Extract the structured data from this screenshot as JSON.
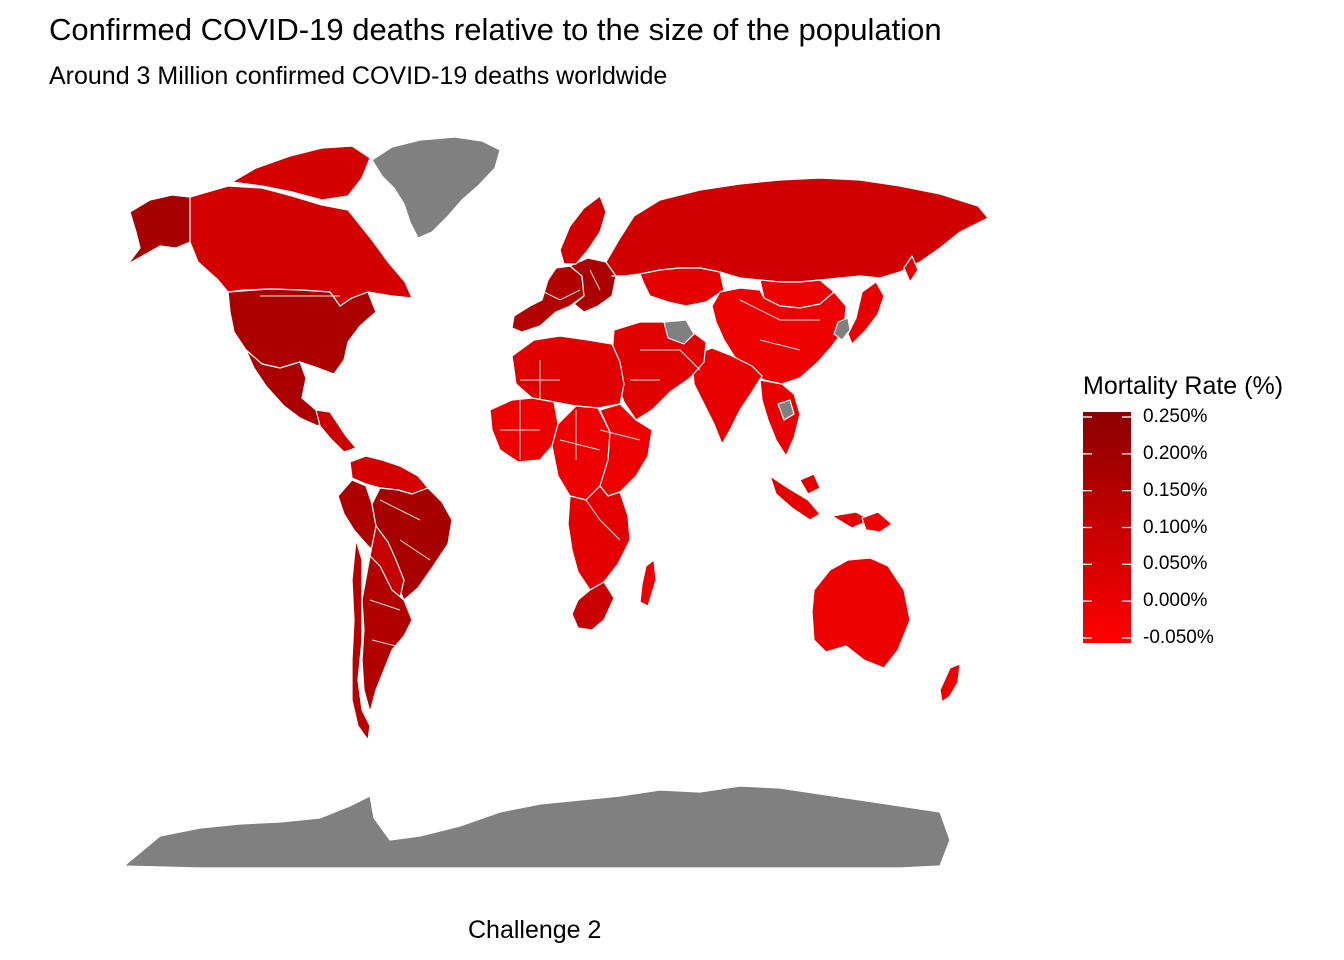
{
  "title": "Confirmed COVID-19 deaths relative to the size of the population",
  "subtitle": "Around 3 Million confirmed COVID-19 deaths worldwide",
  "caption": "Challenge 2",
  "legend": {
    "title": "Mortality Rate (%)",
    "labels": [
      "0.250%",
      "0.200%",
      "0.150%",
      "0.100%",
      "0.050%",
      "0.000%",
      "-0.050%"
    ],
    "color_high": "#8b0000",
    "color_low": "#ff0000",
    "no_data_color": "#808080"
  },
  "chart_data": {
    "type": "choropleth",
    "variable": "Mortality Rate (%)",
    "scale_range": [
      -0.05,
      0.25
    ],
    "regions": [
      {
        "name": "Greenland",
        "value": null
      },
      {
        "name": "Alaska (USA)",
        "value": 0.18
      },
      {
        "name": "Canada",
        "value": 0.06
      },
      {
        "name": "United States",
        "value": 0.17
      },
      {
        "name": "Mexico",
        "value": 0.17
      },
      {
        "name": "Central America",
        "value": 0.08
      },
      {
        "name": "Colombia / Venezuela / Guyanas",
        "value": 0.06
      },
      {
        "name": "Peru",
        "value": 0.16
      },
      {
        "name": "Brazil",
        "value": 0.18
      },
      {
        "name": "Bolivia / Paraguay",
        "value": 0.1
      },
      {
        "name": "Argentina",
        "value": 0.15
      },
      {
        "name": "Chile",
        "value": 0.13
      },
      {
        "name": "Europe West",
        "value": 0.15
      },
      {
        "name": "Europe Central",
        "value": 0.17
      },
      {
        "name": "Scandinavia",
        "value": 0.07
      },
      {
        "name": "Russia",
        "value": 0.07
      },
      {
        "name": "Kazakhstan",
        "value": 0.02
      },
      {
        "name": "Mongolia",
        "value": 0.0
      },
      {
        "name": "China",
        "value": 0.0
      },
      {
        "name": "India",
        "value": 0.01
      },
      {
        "name": "Middle East",
        "value": 0.03
      },
      {
        "name": "Turkmenistan",
        "value": null
      },
      {
        "name": "North Korea",
        "value": null
      },
      {
        "name": "Japan",
        "value": 0.01
      },
      {
        "name": "Southeast Asia",
        "value": 0.01
      },
      {
        "name": "Laos",
        "value": null
      },
      {
        "name": "Indonesia",
        "value": 0.02
      },
      {
        "name": "North Africa",
        "value": 0.03
      },
      {
        "name": "West Africa",
        "value": 0.0
      },
      {
        "name": "Central Africa",
        "value": 0.0
      },
      {
        "name": "East Africa",
        "value": 0.0
      },
      {
        "name": "Southern Africa",
        "value": 0.02
      },
      {
        "name": "South Africa",
        "value": 0.09
      },
      {
        "name": "Madagascar",
        "value": 0.0
      },
      {
        "name": "Australia",
        "value": 0.0
      },
      {
        "name": "New Zealand",
        "value": 0.0
      },
      {
        "name": "Papua New Guinea",
        "value": 0.0
      },
      {
        "name": "Antarctica",
        "value": null
      }
    ]
  }
}
